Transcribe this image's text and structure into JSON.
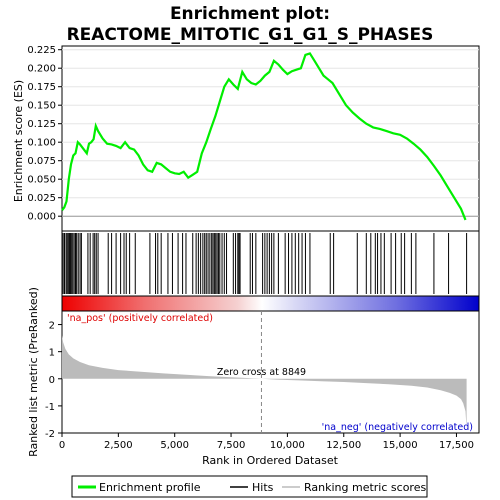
{
  "chart_data": {
    "type": "line",
    "title_line1": "Enrichment plot:",
    "title_line2": "REACTOME_MITOTIC_G1_G1_S_PHASES",
    "top_panel": {
      "ylabel": "Enrichment score (ES)",
      "ylim": [
        -0.02,
        0.23
      ],
      "yticks": [
        "0.000",
        "0.025",
        "0.050",
        "0.075",
        "0.100",
        "0.125",
        "0.150",
        "0.175",
        "0.200",
        "0.225"
      ],
      "ytick_values": [
        0.0,
        0.025,
        0.05,
        0.075,
        0.1,
        0.125,
        0.15,
        0.175,
        0.2,
        0.225
      ],
      "xlim": [
        0,
        18500
      ],
      "series_name": "Enrichment profile",
      "color": "#00ee00",
      "x": [
        0,
        100,
        200,
        300,
        400,
        500,
        600,
        700,
        800,
        900,
        1100,
        1200,
        1300,
        1400,
        1500,
        1600,
        1800,
        2000,
        2200,
        2400,
        2600,
        2800,
        3000,
        3200,
        3400,
        3600,
        3800,
        4000,
        4200,
        4400,
        4600,
        4800,
        5000,
        5200,
        5400,
        5600,
        5800,
        6000,
        6200,
        6400,
        6600,
        6800,
        7000,
        7200,
        7400,
        7600,
        7800,
        8000,
        8200,
        8400,
        8600,
        8800,
        9000,
        9200,
        9400,
        9600,
        9800,
        10000,
        10200,
        10400,
        10600,
        10800,
        11000,
        11200,
        11400,
        11600,
        11800,
        12000,
        12300,
        12600,
        12900,
        13200,
        13500,
        13800,
        14100,
        14400,
        14700,
        15000,
        15300,
        15600,
        15900,
        16200,
        16500,
        16800,
        17100,
        17400,
        17700,
        17900
      ],
      "y": [
        0.008,
        0.012,
        0.02,
        0.05,
        0.07,
        0.082,
        0.085,
        0.1,
        0.097,
        0.093,
        0.085,
        0.098,
        0.1,
        0.104,
        0.122,
        0.115,
        0.105,
        0.098,
        0.097,
        0.095,
        0.092,
        0.1,
        0.092,
        0.09,
        0.082,
        0.07,
        0.062,
        0.06,
        0.072,
        0.07,
        0.065,
        0.06,
        0.058,
        0.057,
        0.06,
        0.052,
        0.056,
        0.06,
        0.085,
        0.1,
        0.118,
        0.135,
        0.155,
        0.175,
        0.185,
        0.178,
        0.172,
        0.195,
        0.185,
        0.18,
        0.178,
        0.183,
        0.19,
        0.195,
        0.21,
        0.205,
        0.198,
        0.192,
        0.196,
        0.198,
        0.2,
        0.218,
        0.22,
        0.21,
        0.2,
        0.19,
        0.185,
        0.18,
        0.165,
        0.15,
        0.14,
        0.132,
        0.125,
        0.12,
        0.118,
        0.115,
        0.112,
        0.11,
        0.105,
        0.098,
        0.09,
        0.08,
        0.068,
        0.055,
        0.04,
        0.025,
        0.01,
        -0.005
      ]
    },
    "hits": [
      50,
      110,
      180,
      230,
      280,
      330,
      380,
      430,
      480,
      540,
      600,
      650,
      720,
      800,
      860,
      1150,
      1250,
      1380,
      1450,
      1520,
      1600,
      2050,
      2200,
      2400,
      2600,
      2750,
      2850,
      3000,
      3250,
      3900,
      4150,
      4250,
      4400,
      4700,
      4900,
      5150,
      5350,
      5500,
      5800,
      5950,
      6050,
      6150,
      6250,
      6330,
      6400,
      6480,
      6560,
      6640,
      6700,
      6760,
      6820,
      6880,
      6940,
      7000,
      7100,
      7200,
      7300,
      7600,
      7700,
      7800,
      7850,
      7900,
      8350,
      8450,
      8600,
      8900,
      9000,
      9100,
      9200,
      9300,
      9400,
      9600,
      9900,
      10050,
      10200,
      10350,
      10500,
      10650,
      10800,
      11000,
      11900,
      12050,
      13100,
      13500,
      13700,
      13900,
      14000,
      14150,
      14300,
      14600,
      14800,
      15050,
      15200,
      15500,
      15700,
      16500,
      17150,
      17950
    ],
    "ranked_panel": {
      "ylabel": "Ranked list metric (PreRanked)",
      "xlabel": "Rank in Ordered Dataset",
      "ylim": [
        -2,
        2.5
      ],
      "yticks": [
        "2",
        "1",
        "0",
        "-1",
        "-2"
      ],
      "ytick_values": [
        2,
        1,
        0,
        -1,
        -2
      ],
      "xticks": [
        "0",
        "2,500",
        "5,000",
        "7,500",
        "10,000",
        "12,500",
        "15,000",
        "17,500"
      ],
      "xtick_values": [
        0,
        2500,
        5000,
        7500,
        10000,
        12500,
        15000,
        17500
      ],
      "metric_x": [
        0,
        50,
        150,
        300,
        500,
        800,
        1200,
        1800,
        2500,
        3500,
        4500,
        5500,
        6500,
        7500,
        8200,
        8849,
        9500,
        10500,
        11500,
        12500,
        13500,
        14500,
        15500,
        16200,
        16800,
        17200,
        17500,
        17700,
        17800,
        17900,
        17950
      ],
      "metric_y": [
        1.6,
        1.35,
        1.1,
        0.9,
        0.75,
        0.62,
        0.5,
        0.4,
        0.32,
        0.26,
        0.2,
        0.15,
        0.1,
        0.06,
        0.03,
        0.0,
        -0.03,
        -0.06,
        -0.09,
        -0.12,
        -0.16,
        -0.2,
        -0.26,
        -0.32,
        -0.42,
        -0.52,
        -0.62,
        -0.75,
        -0.9,
        -1.2,
        -1.85
      ]
    },
    "zero_cross_label": "Zero cross at 8849",
    "zero_cross_x": 8849,
    "pos_label": "'na_pos' (positively correlated)",
    "neg_label": "'na_neg' (negatively correlated)",
    "legend": [
      "Enrichment profile",
      "Hits",
      "Ranking metric scores"
    ],
    "colors": {
      "profile": "#00ee00",
      "hits": "#000000",
      "metric": "#bbbbbb",
      "pos_text": "#dd0000",
      "neg_text": "#0000cc",
      "heat_red": "#ee0000",
      "heat_blue": "#0000cc"
    }
  }
}
